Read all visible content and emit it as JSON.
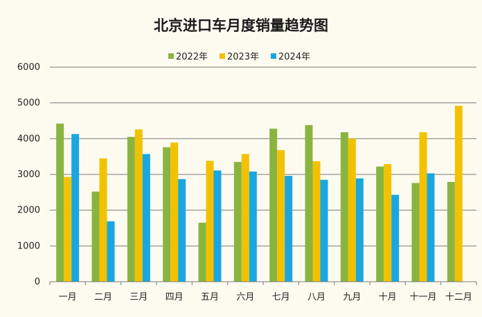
{
  "chart_data": {
    "type": "bar",
    "title": "北京进口车月度销量趋势图",
    "xlabel": "",
    "ylabel": "",
    "ylim": [
      0,
      6000
    ],
    "yticks": [
      0,
      1000,
      2000,
      3000,
      4000,
      5000,
      6000
    ],
    "grid": true,
    "legend_position": "top",
    "categories": [
      "一月",
      "二月",
      "三月",
      "四月",
      "五月",
      "六月",
      "七月",
      "八月",
      "九月",
      "十月",
      "十一月",
      "十二月"
    ],
    "series": [
      {
        "name": "2022年",
        "color": "#8ab440",
        "values": [
          4420,
          2520,
          4050,
          3760,
          1650,
          3350,
          4280,
          4380,
          4180,
          3220,
          2760,
          2790
        ]
      },
      {
        "name": "2023年",
        "color": "#f2c200",
        "values": [
          2930,
          3450,
          4260,
          3890,
          3380,
          3570,
          3680,
          3370,
          4000,
          3290,
          4180,
          4920
        ]
      },
      {
        "name": "2024年",
        "color": "#1aa7e0",
        "values": [
          4130,
          1690,
          3570,
          2870,
          3110,
          3080,
          2960,
          2850,
          2890,
          2430,
          3030,
          null
        ]
      }
    ]
  }
}
